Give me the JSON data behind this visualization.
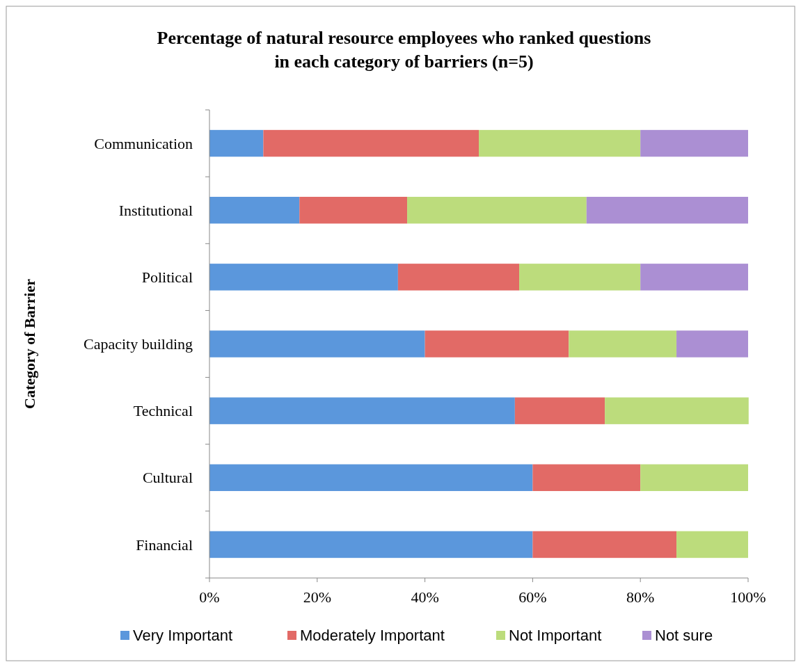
{
  "chart_data": {
    "type": "bar",
    "orientation": "horizontal",
    "stacked": true,
    "title": "Percentage of natural resource employees who ranked questions\nin each category of barriers (n=5)",
    "ylabel": "Category of Barrier",
    "categories": [
      "Communication",
      "Institutional",
      "Political",
      "Capacity building",
      "Technical",
      "Cultural",
      "Financial"
    ],
    "series": [
      {
        "name": "Very Important",
        "color": "#5b97dc",
        "values": [
          10,
          16.7,
          35,
          40,
          56.7,
          60,
          60
        ]
      },
      {
        "name": "Moderately Important",
        "color": "#e26a66",
        "values": [
          40,
          20,
          22.5,
          26.7,
          16.7,
          20,
          26.7
        ]
      },
      {
        "name": "Not Important",
        "color": "#bcdc7c",
        "values": [
          30,
          33.3,
          22.5,
          20,
          26.7,
          20,
          13.3
        ]
      },
      {
        "name": "Not sure",
        "color": "#ab8fd3",
        "values": [
          20,
          30,
          20,
          13.3,
          0,
          0,
          0
        ]
      }
    ],
    "xlim": [
      0,
      100
    ],
    "xticks": [
      {
        "value": 0,
        "label": "0%"
      },
      {
        "value": 20,
        "label": "20%"
      },
      {
        "value": 40,
        "label": "40%"
      },
      {
        "value": 60,
        "label": "60%"
      },
      {
        "value": 80,
        "label": "80%"
      },
      {
        "value": 100,
        "label": "100%"
      }
    ],
    "legend": "bottom",
    "grid": false
  }
}
